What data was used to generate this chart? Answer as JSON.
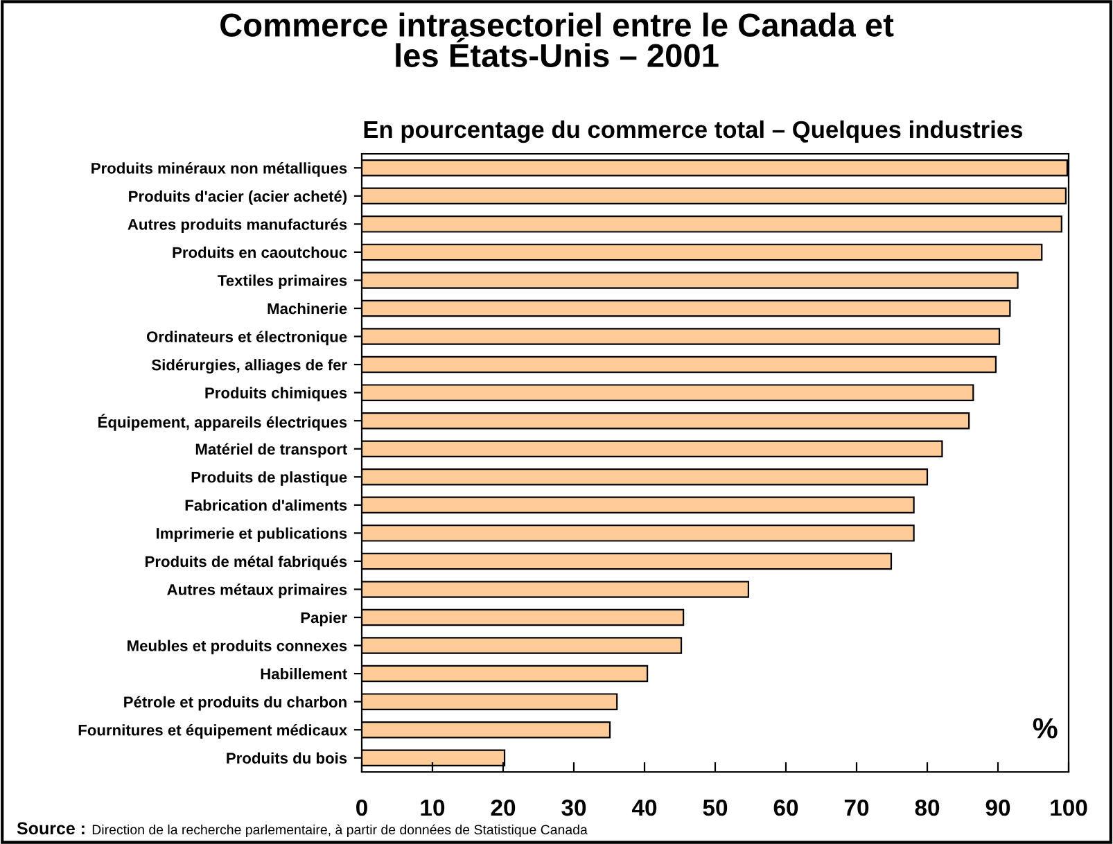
{
  "chart_data": {
    "type": "bar",
    "orientation": "horizontal",
    "title": "Commerce intrasectoriel entre le Canada et\nles États-Unis – 2001",
    "subtitle": "En pourcentage du commerce total – Quelques industries",
    "categories": [
      "Produits minéraux non métalliques",
      "Produits d'acier (acier acheté)",
      "Autres produits manufacturés",
      "Produits en caoutchouc",
      "Textiles primaires",
      "Machinerie",
      "Ordinateurs et électronique",
      "Sidérurgies, alliages de fer",
      "Produits chimiques",
      "Équipement, appareils électriques",
      "Matériel de transport",
      "Produits de plastique",
      "Fabrication d'aliments",
      "Imprimerie et publications",
      "Produits de métal fabriqués",
      "Autres métaux primaires",
      "Papier",
      "Meubles et produits connexes",
      "Habillement",
      "Pétrole et produits du charbon",
      "Fournitures et équipement médicaux",
      "Produits du bois"
    ],
    "values": [
      99.8,
      99.6,
      99.0,
      96.2,
      92.8,
      91.7,
      90.2,
      89.7,
      86.5,
      85.9,
      82.1,
      80.0,
      78.1,
      78.1,
      74.9,
      54.7,
      45.5,
      45.2,
      40.4,
      36.1,
      35.1,
      20.2
    ],
    "color": "#ffcc99",
    "xlim": [
      0,
      100
    ],
    "xticks": [
      0,
      10,
      20,
      30,
      40,
      50,
      60,
      70,
      80,
      90,
      100
    ],
    "grid": false,
    "legend": false,
    "annotations": [
      "%",
      "Source : Direction de la recherche parlementaire, à partir de données de Statistique Canada"
    ]
  }
}
